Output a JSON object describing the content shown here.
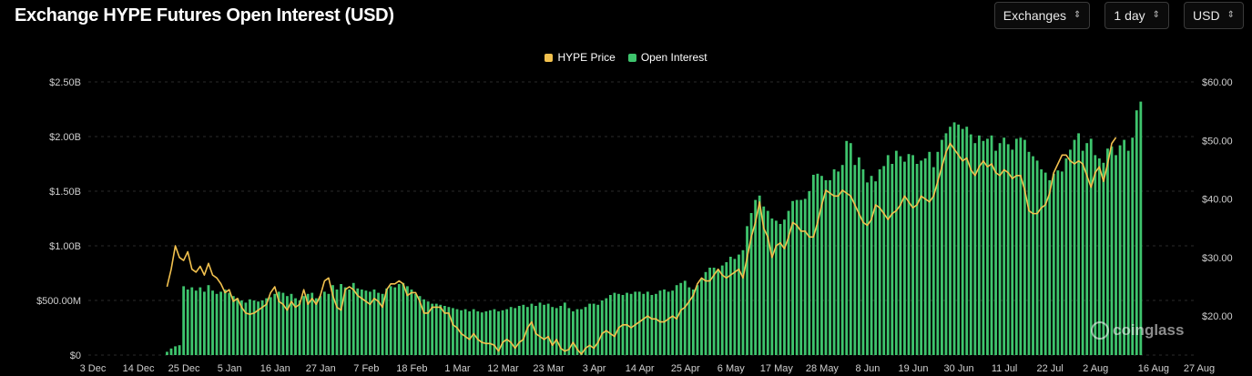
{
  "header": {
    "title": "Exchange HYPE Futures Open Interest (USD)"
  },
  "controls": {
    "exchange_label": "Exchanges",
    "interval_label": "1 day",
    "currency_label": "USD"
  },
  "watermark": {
    "text": "coinglass"
  },
  "colors": {
    "background": "#000000",
    "bars": "#3ec46d",
    "price_line": "#f2c14e",
    "grid": "#2a2a2a",
    "tick_text": "#cfcfcf"
  },
  "chart_data": {
    "type": "bar",
    "title": "Exchange HYPE Futures Open Interest (USD)",
    "legend_position": "top-center",
    "grid": true,
    "x_tick_labels": [
      "3 Dec",
      "14 Dec",
      "25 Dec",
      "5 Jan",
      "16 Jan",
      "27 Jan",
      "7 Feb",
      "18 Feb",
      "1 Mar",
      "12 Mar",
      "23 Mar",
      "3 Apr",
      "14 Apr",
      "25 Apr",
      "6 May",
      "17 May",
      "28 May",
      "8 Jun",
      "19 Jun",
      "30 Jun",
      "11 Jul",
      "22 Jul",
      "2 Aug",
      "16 Aug",
      "27 Aug"
    ],
    "x_tick_index": [
      0,
      11,
      22,
      33,
      44,
      55,
      66,
      77,
      88,
      99,
      110,
      121,
      132,
      143,
      154,
      165,
      176,
      187,
      198,
      209,
      220,
      231,
      242,
      256,
      267
    ],
    "left_axis": {
      "ticks": [
        "$0",
        "$500.00M",
        "$1.00B",
        "$1.50B",
        "$2.00B",
        "$2.50B"
      ],
      "values": [
        0,
        500,
        1000,
        1500,
        2000,
        2500
      ],
      "unit": "USD millions",
      "range": [
        0,
        2500
      ]
    },
    "right_axis": {
      "ticks": [
        "$20.00",
        "$30.00",
        "$40.00",
        "$50.00",
        "$60.00"
      ],
      "values": [
        20,
        30,
        40,
        50,
        60
      ],
      "range": [
        13.33,
        60
      ]
    },
    "series": [
      {
        "name": "Open Interest",
        "axis": "left",
        "start_index": 19,
        "values": [
          30,
          60,
          80,
          90,
          630,
          600,
          620,
          590,
          620,
          580,
          640,
          590,
          560,
          580,
          600,
          570,
          540,
          520,
          500,
          480,
          510,
          500,
          490,
          500,
          520,
          530,
          560,
          580,
          570,
          540,
          560,
          520,
          500,
          540,
          560,
          570,
          520,
          540,
          580,
          560,
          640,
          600,
          650,
          620,
          600,
          660,
          610,
          600,
          590,
          580,
          600,
          570,
          560,
          610,
          630,
          620,
          650,
          660,
          630,
          600,
          560,
          540,
          510,
          490,
          470,
          470,
          460,
          450,
          440,
          430,
          420,
          410,
          420,
          400,
          420,
          400,
          390,
          400,
          410,
          420,
          400,
          410,
          420,
          440,
          430,
          450,
          460,
          440,
          470,
          450,
          480,
          460,
          470,
          440,
          430,
          450,
          480,
          430,
          400,
          420,
          420,
          440,
          470,
          470,
          460,
          500,
          520,
          550,
          570,
          560,
          550,
          570,
          560,
          580,
          580,
          560,
          580,
          550,
          560,
          590,
          600,
          580,
          590,
          640,
          660,
          680,
          620,
          600,
          640,
          700,
          760,
          800,
          800,
          780,
          820,
          850,
          900,
          880,
          920,
          960,
          1180,
          1300,
          1420,
          1460,
          1360,
          1320,
          1250,
          1230,
          1200,
          1240,
          1320,
          1410,
          1420,
          1420,
          1430,
          1500,
          1650,
          1660,
          1640,
          1600,
          1600,
          1700,
          1680,
          1740,
          1960,
          1940,
          1740,
          1810,
          1700,
          1580,
          1640,
          1590,
          1700,
          1730,
          1830,
          1750,
          1870,
          1820,
          1770,
          1840,
          1830,
          1750,
          1780,
          1800,
          1860,
          1720,
          1860,
          1970,
          2030,
          2090,
          2130,
          2110,
          2070,
          2090,
          2020,
          1940,
          2010,
          1960,
          1980,
          2010,
          1870,
          1940,
          1990,
          1930,
          1880,
          1980,
          1990,
          1970,
          1860,
          1820,
          1780,
          1700,
          1670,
          1600,
          1660,
          1690,
          1680,
          1800,
          1880,
          1970,
          2030,
          1870,
          1940,
          1980,
          1830,
          1800,
          1760,
          1890,
          1910,
          1830,
          1920,
          1970,
          1870,
          1990,
          2240,
          2320
        ]
      },
      {
        "name": "HYPE Price",
        "axis": "right",
        "start_index": 19,
        "values": [
          25.0,
          28.0,
          32.0,
          30.0,
          29.5,
          31.0,
          28.0,
          27.5,
          28.5,
          27.0,
          29.0,
          27.0,
          26.5,
          25.5,
          24.0,
          24.5,
          22.5,
          23.0,
          21.5,
          20.5,
          20.3,
          20.5,
          21.0,
          21.5,
          22.0,
          24.0,
          25.0,
          22.5,
          22.0,
          21.0,
          22.5,
          21.5,
          22.0,
          24.5,
          22.0,
          23.0,
          22.0,
          23.5,
          26.0,
          26.5,
          23.5,
          21.5,
          21.0,
          24.5,
          25.0,
          24.5,
          23.5,
          23.0,
          22.5,
          22.0,
          23.0,
          22.5,
          21.5,
          24.5,
          25.5,
          25.5,
          26.0,
          25.5,
          23.5,
          24.0,
          24.0,
          22.5,
          20.5,
          20.5,
          21.5,
          21.5,
          21.5,
          20.5,
          20.5,
          18.5,
          18.0,
          17.0,
          16.5,
          16.0,
          17.0,
          16.0,
          15.5,
          15.3,
          15.3,
          15.0,
          14.0,
          15.5,
          16.0,
          15.5,
          14.5,
          15.5,
          16.0,
          18.0,
          19.0,
          17.0,
          16.5,
          16.0,
          16.5,
          15.0,
          16.0,
          14.5,
          14.0,
          14.3,
          15.5,
          14.3,
          13.5,
          14.5,
          15.0,
          14.5,
          15.5,
          17.0,
          17.5,
          17.0,
          16.5,
          18.0,
          18.5,
          18.5,
          18.0,
          18.5,
          19.0,
          19.5,
          20.0,
          19.5,
          19.5,
          19.0,
          19.0,
          19.5,
          20.0,
          19.5,
          21.0,
          21.5,
          22.5,
          23.5,
          25.5,
          26.5,
          26.0,
          26.0,
          27.0,
          28.0,
          27.0,
          26.5,
          27.0,
          27.5,
          28.0,
          26.5,
          30.0,
          33.5,
          36.0,
          39.5,
          35.0,
          33.5,
          30.0,
          32.0,
          32.5,
          31.5,
          33.5,
          36.0,
          35.5,
          34.5,
          34.5,
          33.5,
          33.5,
          36.0,
          39.0,
          41.5,
          41.0,
          40.5,
          40.5,
          41.5,
          41.0,
          40.5,
          39.0,
          37.5,
          36.0,
          35.5,
          36.5,
          39.0,
          38.5,
          37.5,
          36.5,
          37.5,
          38.0,
          39.0,
          40.5,
          39.5,
          38.5,
          39.0,
          40.5,
          40.0,
          39.5,
          40.5,
          43.0,
          45.5,
          48.0,
          49.5,
          48.5,
          47.5,
          46.5,
          47.0,
          45.0,
          44.0,
          45.5,
          46.5,
          45.5,
          46.0,
          44.5,
          44.0,
          45.0,
          44.5,
          43.5,
          44.0,
          44.0,
          41.5,
          38.0,
          37.5,
          37.5,
          38.5,
          39.0,
          41.0,
          44.5,
          46.0,
          47.5,
          47.5,
          46.5,
          46.0,
          46.5,
          46.0,
          44.0,
          42.0,
          44.5,
          45.5,
          43.0,
          46.0,
          49.5,
          50.5
        ]
      }
    ]
  }
}
